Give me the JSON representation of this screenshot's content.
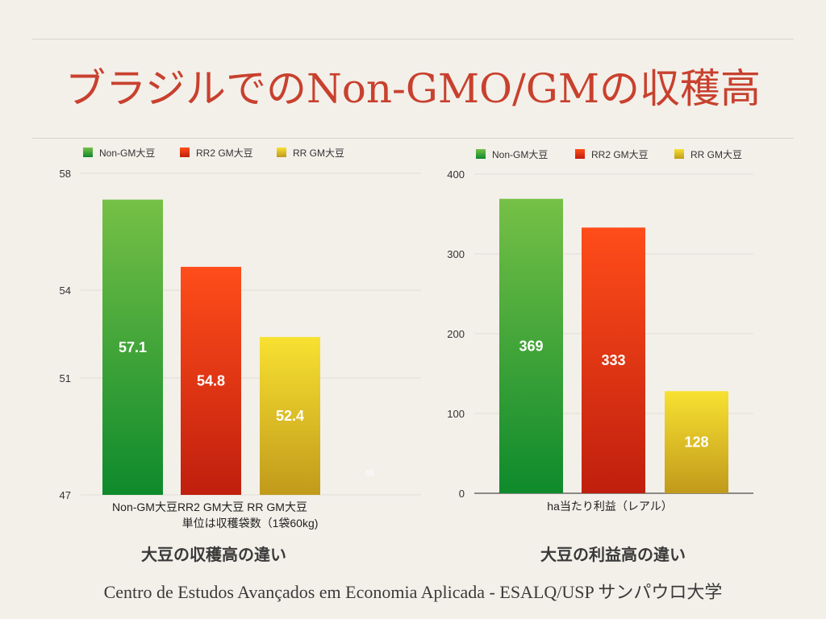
{
  "title": "ブラジルでのNon-GMO/GMの収穫高",
  "footer": "Centro de Estudos Avançados em Economia Aplicada - ESALQ/USP  サンパウロ大学",
  "colors": {
    "title": "#c8412e",
    "green": [
      "#76c046",
      "#0e8a2c"
    ],
    "red": [
      "#ff4d1a",
      "#c01f0e"
    ],
    "yellow": [
      "#f8e131",
      "#c19a1b"
    ]
  },
  "chart_data": [
    {
      "type": "bar",
      "title": "",
      "caption": "大豆の収穫高の違い",
      "legend_position": "top",
      "legend": [
        "Non-GM大豆",
        "RR2 GM大豆",
        "RR GM大豆"
      ],
      "series": [
        {
          "name": "Non-GM大豆",
          "values": [
            57.1
          ],
          "color": "green"
        },
        {
          "name": "RR2 GM大豆",
          "values": [
            54.8
          ],
          "color": "red"
        },
        {
          "name": "RR GM大豆",
          "values": [
            52.4
          ],
          "color": "yellow"
        }
      ],
      "categories": [
        "Non-GM大豆RR2 GM大豆 RR GM大豆"
      ],
      "xlabel": "単位は収穫袋数（1袋60kg)",
      "ylabel": "",
      "yticks": [
        47,
        51,
        54,
        58
      ],
      "ylim": [
        47,
        58
      ],
      "grid": true,
      "stray_label": "48"
    },
    {
      "type": "bar",
      "title": "",
      "caption": "大豆の利益高の違い",
      "legend_position": "top",
      "legend": [
        "Non-GM大豆",
        "RR2 GM大豆",
        "RR GM大豆"
      ],
      "series": [
        {
          "name": "Non-GM大豆",
          "values": [
            369
          ],
          "color": "green"
        },
        {
          "name": "RR2 GM大豆",
          "values": [
            333
          ],
          "color": "red"
        },
        {
          "name": "RR GM大豆",
          "values": [
            128
          ],
          "color": "yellow"
        }
      ],
      "categories": [
        "ha当たり利益（レアル）"
      ],
      "xlabel": "",
      "ylabel": "",
      "yticks": [
        0,
        100,
        200,
        300,
        400
      ],
      "ylim": [
        0,
        400
      ],
      "grid": true
    }
  ]
}
